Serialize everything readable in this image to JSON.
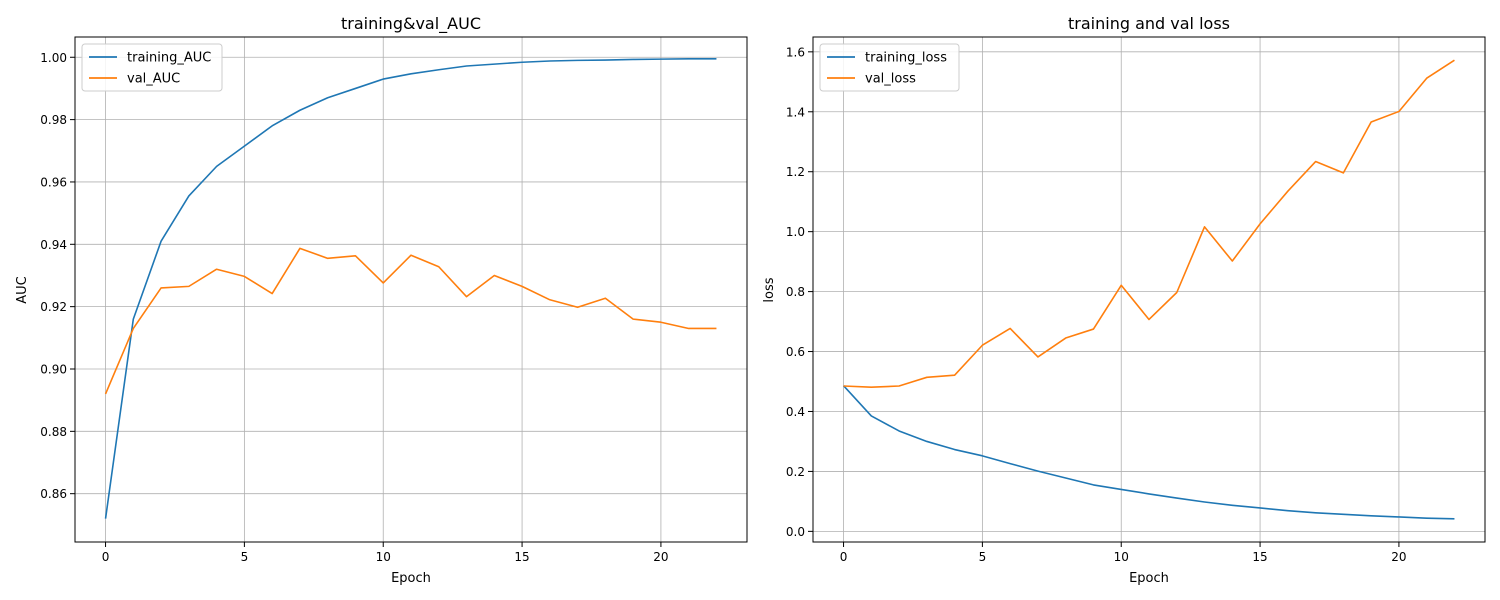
{
  "chart_data": [
    {
      "type": "line",
      "title": "training&val_AUC",
      "xlabel": "Epoch",
      "ylabel": "AUC",
      "xlim": [
        -1.1,
        23.1
      ],
      "ylim": [
        0.8445,
        1.0065
      ],
      "xticks": [
        0,
        5,
        10,
        15,
        20
      ],
      "xtick_labels": [
        "0",
        "5",
        "10",
        "15",
        "20"
      ],
      "yticks": [
        0.86,
        0.88,
        0.9,
        0.92,
        0.94,
        0.96,
        0.98,
        1.0
      ],
      "ytick_labels": [
        "0.86",
        "0.88",
        "0.90",
        "0.92",
        "0.94",
        "0.96",
        "0.98",
        "1.00"
      ],
      "grid": true,
      "legend_position": "top-left",
      "x": [
        0,
        1,
        2,
        3,
        4,
        5,
        6,
        7,
        8,
        9,
        10,
        11,
        12,
        13,
        14,
        15,
        16,
        17,
        18,
        19,
        20,
        21,
        22
      ],
      "series": [
        {
          "name": "training_AUC",
          "color": "#1f77b4",
          "values": [
            0.852,
            0.916,
            0.941,
            0.9555,
            0.965,
            0.9715,
            0.978,
            0.983,
            0.987,
            0.99,
            0.993,
            0.9947,
            0.996,
            0.9972,
            0.9978,
            0.9984,
            0.9988,
            0.999,
            0.9991,
            0.9993,
            0.9994,
            0.9995,
            0.9995
          ]
        },
        {
          "name": "val_AUC",
          "color": "#ff7f0e",
          "values": [
            0.892,
            0.913,
            0.926,
            0.9265,
            0.932,
            0.9297,
            0.9242,
            0.9387,
            0.9355,
            0.9363,
            0.9276,
            0.9365,
            0.9328,
            0.9232,
            0.93,
            0.9265,
            0.9222,
            0.9198,
            0.9227,
            0.916,
            0.915,
            0.913,
            0.913
          ]
        }
      ]
    },
    {
      "type": "line",
      "title": "training and val loss",
      "xlabel": "Epoch",
      "ylabel": "loss",
      "xlim": [
        -1.1,
        23.1
      ],
      "ylim": [
        -0.0355,
        1.6495
      ],
      "xticks": [
        0,
        5,
        10,
        15,
        20
      ],
      "xtick_labels": [
        "0",
        "5",
        "10",
        "15",
        "20"
      ],
      "yticks": [
        0.0,
        0.2,
        0.4,
        0.6,
        0.8,
        1.0,
        1.2,
        1.4,
        1.6
      ],
      "ytick_labels": [
        "0.0",
        "0.2",
        "0.4",
        "0.6",
        "0.8",
        "1.0",
        "1.2",
        "1.4",
        "1.6"
      ],
      "grid": true,
      "legend_position": "top-left",
      "x": [
        0,
        1,
        2,
        3,
        4,
        5,
        6,
        7,
        8,
        9,
        10,
        11,
        12,
        13,
        14,
        15,
        16,
        17,
        18,
        19,
        20,
        21,
        22
      ],
      "series": [
        {
          "name": "training_loss",
          "color": "#1f77b4",
          "values": [
            0.486,
            0.385,
            0.335,
            0.3,
            0.273,
            0.252,
            0.226,
            0.201,
            0.178,
            0.155,
            0.14,
            0.125,
            0.111,
            0.098,
            0.087,
            0.078,
            0.069,
            0.062,
            0.057,
            0.052,
            0.048,
            0.044,
            0.042
          ]
        },
        {
          "name": "val_loss",
          "color": "#ff7f0e",
          "values": [
            0.485,
            0.481,
            0.485,
            0.514,
            0.521,
            0.621,
            0.677,
            0.582,
            0.645,
            0.675,
            0.821,
            0.707,
            0.797,
            1.016,
            0.902,
            1.026,
            1.135,
            1.234,
            1.196,
            1.366,
            1.401,
            1.512,
            1.572
          ]
        }
      ]
    }
  ]
}
